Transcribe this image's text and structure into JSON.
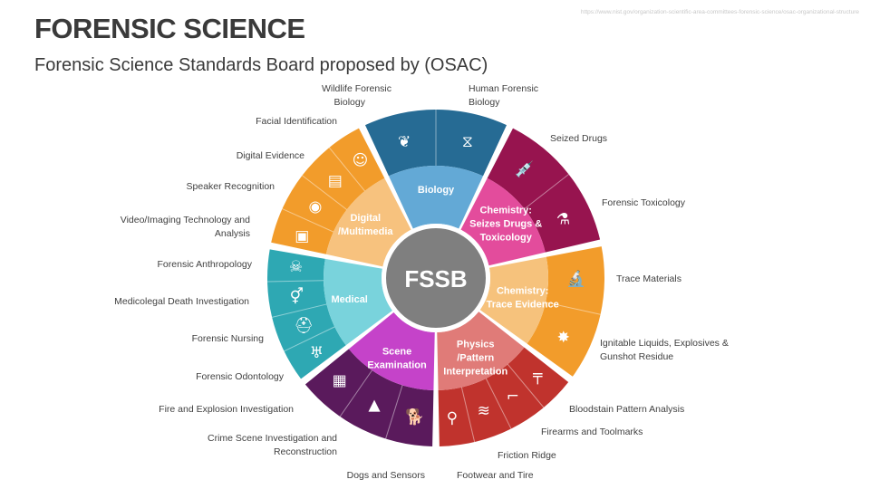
{
  "header": {
    "title": "FORENSIC SCIENCE",
    "subtitle": "Forensic Science Standards Board proposed by (OSAC)",
    "source_url": "https://www.nist.gov/organization-scientific-area-committees-forensic-science/osac-organizational-structure"
  },
  "wheel": {
    "center_label": "FSSB",
    "center_color": "#7f7f7f",
    "categories": [
      {
        "name": "Biology",
        "lines": [
          "Biology"
        ],
        "inner_color": "#63a9d6",
        "outer_color": "#266b94",
        "subcommittees": [
          {
            "label": "Wildlife Forensic Biology",
            "icon": "olive-branch-icon"
          },
          {
            "label": "Human Forensic Biology",
            "icon": "dna-icon"
          }
        ]
      },
      {
        "name": "Chemistry: Seizes Drugs & Toxicology",
        "lines": [
          "Chemistry:",
          "Seizes Drugs &",
          "Toxicology"
        ],
        "inner_color": "#e34c9c",
        "outer_color": "#97144f",
        "subcommittees": [
          {
            "label": "Seized Drugs",
            "icon": "drugs-syringe-icon"
          },
          {
            "label": "Forensic Toxicology",
            "icon": "flask-poison-icon"
          }
        ]
      },
      {
        "name": "Chemistry: Trace Evidence",
        "lines": [
          "Chemistry:",
          "Trace Evidence"
        ],
        "inner_color": "#f6c27c",
        "outer_color": "#f29c2b",
        "subcommittees": [
          {
            "label": "Trace Materials",
            "icon": "microscope-icon"
          },
          {
            "label": "Ignitable Liquids, Explosives & Gunshot Residue",
            "icon": "explosion-icon"
          }
        ]
      },
      {
        "name": "Physics /Pattern Interpretation",
        "lines": [
          "Physics",
          "/Pattern",
          "Interpretation"
        ],
        "inner_color": "#e07b78",
        "outer_color": "#c0332d",
        "subcommittees": [
          {
            "label": "Bloodstain Pattern Analysis",
            "icon": "blood-drip-icon"
          },
          {
            "label": "Firearms and Toolmarks",
            "icon": "pistol-icon"
          },
          {
            "label": "Friction Ridge",
            "icon": "scratch-marks-icon"
          },
          {
            "label": "Footwear and Tire",
            "icon": "magnifier-footprint-icon"
          }
        ]
      },
      {
        "name": "Scene Examination",
        "lines": [
          "Scene",
          "Examination"
        ],
        "inner_color": "#c543c9",
        "outer_color": "#5a1a5c",
        "subcommittees": [
          {
            "label": "Dogs and Sensors",
            "icon": "dog-icon"
          },
          {
            "label": "Crime Scene Investigation and Reconstruction",
            "icon": "evidence-markers-icon"
          },
          {
            "label": "Fire and Explosion Investigation",
            "icon": "burning-building-icon"
          }
        ]
      },
      {
        "name": "Medical",
        "lines": [
          "Medical"
        ],
        "inner_color": "#79d3dc",
        "outer_color": "#2ea8b3",
        "subcommittees": [
          {
            "label": "Forensic Odontology",
            "icon": "tooth-icon"
          },
          {
            "label": "Forensic Nursing",
            "icon": "nurse-cap-icon"
          },
          {
            "label": "Medicolegal Death Investigation",
            "icon": "body-outline-icon"
          },
          {
            "label": "Forensic Anthropology",
            "icon": "skull-icon"
          }
        ]
      },
      {
        "name": "Digital /Multimedia",
        "lines": [
          "Digital",
          "/Multimedia"
        ],
        "inner_color": "#f7c27e",
        "outer_color": "#f29c2b",
        "subcommittees": [
          {
            "label": "Video/Imaging Technology and Analysis",
            "icon": "video-screen-icon"
          },
          {
            "label": "Speaker Recognition",
            "icon": "microphone-icon"
          },
          {
            "label": "Digital Evidence",
            "icon": "fingerprint-device-icon"
          },
          {
            "label": "Facial Identification",
            "icon": "face-scan-icon"
          }
        ]
      }
    ]
  },
  "labels": {
    "wildlife": [
      "Wildlife Forensic",
      "Biology"
    ],
    "human": [
      "Human Forensic",
      "Biology"
    ],
    "seized": "Seized Drugs",
    "tox": "Forensic Toxicology",
    "trace": "Trace Materials",
    "ignitable": [
      "Ignitable Liquids, Explosives &",
      "Gunshot Residue"
    ],
    "bloodstain": "Bloodstain Pattern Analysis",
    "firearms": "Firearms and Toolmarks",
    "friction": "Friction Ridge",
    "footwear": "Footwear and Tire",
    "dogs": "Dogs and Sensors",
    "csi": [
      "Crime Scene Investigation and",
      "Reconstruction"
    ],
    "fire": "Fire and Explosion Investigation",
    "odontology": "Forensic Odontology",
    "nursing": "Forensic Nursing",
    "medicolegal": "Medicolegal Death Investigation",
    "anthropology": "Forensic Anthropology",
    "video": [
      "Video/Imaging Technology and",
      "Analysis"
    ],
    "speaker": "Speaker Recognition",
    "digital": "Digital Evidence",
    "facial": "Facial Identification"
  }
}
